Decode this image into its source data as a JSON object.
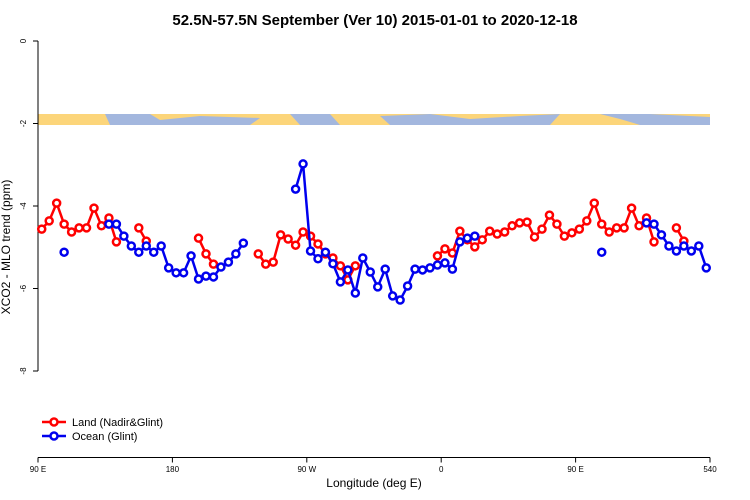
{
  "chart_data": {
    "type": "line",
    "title": "52.5N-57.5N September (Ver 10)   2015-01-01 to 2020-12-18",
    "x_label": "Longitude (deg E)",
    "y_label": "XCO2 - MLO trend (ppm)",
    "xlim": [
      90,
      540
    ],
    "ylim": [
      -10,
      0
    ],
    "xticks": [
      {
        "value": 90,
        "label": "90 E"
      },
      180,
      {
        "value": 270,
        "label": "90 W"
      },
      {
        "value": 360,
        "label": "0"
      },
      {
        "value": 450,
        "label": "90 E"
      },
      540
    ],
    "yticks": [
      0,
      -2,
      -4,
      -6,
      -8
    ],
    "x": [
      92.5,
      97.5,
      102.5,
      107.5,
      112.5,
      117.5,
      122.5,
      127.5,
      132.5,
      137.5,
      142.5,
      147.5,
      152.5,
      157.5,
      162.5,
      167.5,
      172.5,
      177.5,
      182.5,
      187.5,
      192.5,
      197.5,
      202.5,
      207.5,
      212.5,
      217.5,
      222.5,
      227.5,
      232.5,
      237.5,
      242.5,
      247.5,
      252.5,
      257.5,
      262.5,
      267.5,
      272.5,
      277.5,
      282.5,
      287.5,
      292.5,
      297.5,
      302.5,
      307.5,
      312.5,
      317.5,
      322.5,
      327.5,
      332.5,
      337.5,
      342.5,
      347.5,
      352.5,
      357.5,
      362.5,
      367.5,
      372.5,
      377.5,
      382.5,
      387.5,
      392.5,
      397.5,
      402.5,
      407.5,
      412.5,
      417.5,
      422.5,
      427.5,
      432.5,
      437.5,
      442.5,
      447.5,
      452.5,
      457.5,
      462.5,
      467.5,
      472.5,
      477.5,
      482.5,
      487.5,
      492.5,
      497.5,
      502.5,
      507.5,
      512.5,
      517.5,
      522.5,
      527.5,
      532.5,
      537.5
    ],
    "legend": "bottom-left",
    "series": [
      {
        "name": "Land (Nadir&Glint)",
        "color": "#ff0000",
        "values": [
          -4.56,
          -4.36,
          -3.93,
          -4.44,
          -4.63,
          -4.53,
          -4.53,
          -4.05,
          -4.48,
          -4.29,
          -4.87,
          null,
          null,
          -4.53,
          -4.85,
          null,
          null,
          null,
          null,
          null,
          null,
          -4.78,
          -5.16,
          -5.41,
          null,
          null,
          null,
          null,
          null,
          -5.16,
          -5.41,
          -5.36,
          -4.7,
          -4.8,
          -4.95,
          -4.63,
          -4.73,
          -4.92,
          -5.16,
          -5.26,
          -5.45,
          -5.79,
          -5.45,
          null,
          null,
          null,
          null,
          null,
          null,
          null,
          null,
          null,
          null,
          -5.21,
          -5.04,
          -5.14,
          -4.61,
          -4.82,
          -4.99,
          -4.82,
          -4.61,
          -4.68,
          -4.63,
          -4.48,
          -4.41,
          -4.39,
          -4.75,
          -4.56,
          -4.22,
          -4.44,
          -4.73,
          -4.65,
          -4.56,
          -4.36,
          -3.93,
          -4.44,
          -4.63,
          -4.53,
          -4.53,
          -4.05,
          -4.48,
          -4.29,
          -4.87,
          null,
          null,
          -4.53,
          -4.85,
          null,
          null,
          null
        ]
      },
      {
        "name": "Ocean (Glint)",
        "color": "#0000ee",
        "values": [
          null,
          null,
          null,
          -5.12,
          null,
          null,
          null,
          null,
          null,
          -4.44,
          -4.44,
          -4.73,
          -4.97,
          -5.12,
          -4.97,
          -5.12,
          -4.97,
          -5.5,
          -5.62,
          -5.62,
          -5.21,
          -5.77,
          -5.7,
          -5.72,
          -5.48,
          -5.36,
          -5.16,
          -4.9,
          null,
          null,
          null,
          null,
          null,
          null,
          -3.59,
          -2.98,
          -5.09,
          -5.28,
          -5.12,
          -5.4,
          -5.84,
          -5.55,
          -6.11,
          -5.26,
          -5.6,
          -5.96,
          -5.53,
          -6.18,
          -6.28,
          -5.94,
          -5.53,
          -5.55,
          -5.5,
          -5.43,
          -5.38,
          -5.53,
          -4.87,
          -4.78,
          -4.73,
          null,
          null,
          null,
          null,
          null,
          null,
          null,
          null,
          null,
          null,
          null,
          null,
          null,
          null,
          null,
          null,
          -5.12,
          null,
          null,
          null,
          null,
          null,
          -4.41,
          -4.44,
          -4.7,
          -4.97,
          -5.09,
          -4.97,
          -5.09,
          -4.97,
          -5.5
        ]
      }
    ]
  }
}
